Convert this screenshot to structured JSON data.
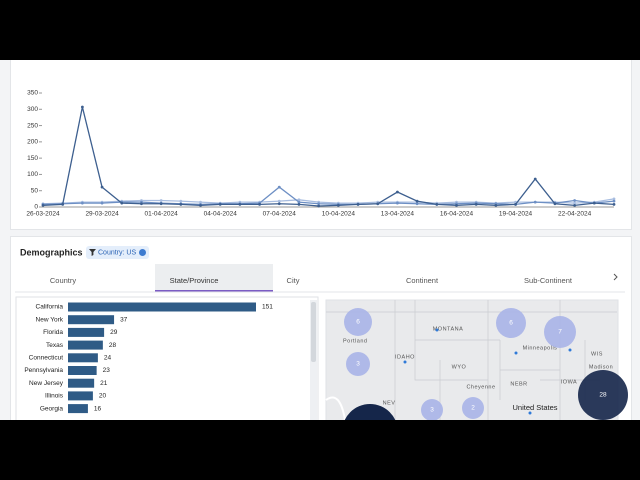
{
  "chart_data": [
    {
      "type": "line",
      "categories": [
        "26-03-2024",
        null,
        null,
        "29-03-2024",
        null,
        null,
        "01-04-2024",
        null,
        null,
        "04-04-2024",
        null,
        null,
        "07-04-2024",
        null,
        null,
        "10-04-2024",
        null,
        null,
        "13-04-2024",
        null,
        null,
        "16-04-2024",
        null,
        null,
        "19-04-2024",
        null,
        null,
        "22-04-2024",
        null,
        null
      ],
      "series": [
        {
          "color": "#a8bde0",
          "values": [
            10,
            12,
            15,
            15,
            18,
            20,
            20,
            18,
            15,
            12,
            15,
            15,
            18,
            22,
            15,
            12,
            12,
            15,
            15,
            15,
            12,
            15,
            15,
            12,
            15,
            15,
            15,
            12,
            15,
            25
          ]
        },
        {
          "color": "#6d8fc4",
          "values": [
            8,
            10,
            12,
            12,
            15,
            15,
            12,
            10,
            8,
            10,
            10,
            12,
            61,
            15,
            10,
            8,
            8,
            10,
            12,
            10,
            8,
            10,
            12,
            10,
            8,
            15,
            12,
            20,
            12,
            18
          ]
        },
        {
          "color": "#3d5f8f",
          "values": [
            5,
            8,
            307,
            61,
            12,
            10,
            10,
            8,
            5,
            8,
            8,
            8,
            10,
            8,
            3,
            5,
            8,
            10,
            46,
            18,
            8,
            5,
            8,
            5,
            8,
            86,
            10,
            5,
            12,
            8
          ]
        }
      ],
      "ylim": [
        0,
        350
      ],
      "yticks": [
        0,
        50,
        100,
        150,
        200,
        250,
        300,
        350
      ]
    },
    {
      "type": "hbar",
      "categories": [
        "California",
        "New York",
        "Florida",
        "Texas",
        "Connecticut",
        "Pennsylvania",
        "New Jersey",
        "Illinois",
        "Georgia"
      ],
      "values": [
        151,
        37,
        29,
        28,
        24,
        23,
        21,
        20,
        16
      ],
      "color": "#2f5b86"
    }
  ],
  "demographics": {
    "title": "Demographics",
    "filter": "Country: US",
    "tabs": [
      "Country",
      "State/Province",
      "City",
      "Continent",
      "Sub-Continent"
    ],
    "active_tab": 1
  },
  "map": {
    "labels": [
      "Portland",
      "MONTANA",
      "IDAHO",
      "WYO",
      "Minneapolis",
      "WIS",
      "Madison",
      "IOWA",
      "NEBR",
      "Cheyenne",
      "NEV",
      "United States"
    ],
    "clusters": [
      "6",
      "3",
      "6",
      "7",
      "28",
      "3",
      "2"
    ]
  }
}
